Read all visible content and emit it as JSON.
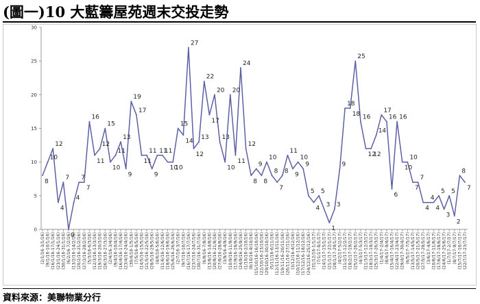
{
  "title": "(圖一)10 大藍籌屋苑週末交投走勢",
  "source": "資料來源：美聯物業分行",
  "chart_data": {
    "type": "line",
    "title": "(圖一)10 大藍籌屋苑週末交投走勢",
    "xlabel": "",
    "ylabel": "",
    "ylim": [
      0,
      30
    ],
    "yticks": [
      0,
      5,
      10,
      15,
      20,
      25,
      30
    ],
    "grid": false,
    "line_color": "#5b5fa6",
    "categories": [
      "(2/1/16-3/1/16)",
      "(9/1/16-10/1/16)",
      "(16/1/16-17/1/16)",
      "(23/1/16-24/1/16)",
      "(30/1/16-31/1/16)",
      "(6/2/16-7/2/16)",
      "(13/2/16-14/2/16)",
      "(20/2/16-21/2/16)",
      "(27/2/16-28/2/16)",
      "(5/3/16-6/3/16)",
      "(12/3/16-13/3/16)",
      "(19/3/16-20/3/16)",
      "(26/3/16-27/3/16)",
      "(2/4/16-3/4/16)",
      "(9/4/16-10/4/16)",
      "(16/4/16-17/4/16)",
      "(23/4/16-24/4/16)",
      "(30/4/16-1/5/16)",
      "(7/5/16-8/5/16)",
      "(14/5/16-15/5/16)",
      "(21/5/16-22/5/16)",
      "(28/5/16-29/5/16)",
      "(4/6/16-5/6/16)",
      "(11/6/16-12/6/16)",
      "(18/6/16-19/6/16)",
      "(25/6/16-26/6/16)",
      "(2/7/16-3/7/16)",
      "(9/7/16-10/7/16)",
      "(16/7/16-17/7/16)",
      "(23/7/16-24/7/16)",
      "(30/7/16-31/7/16)",
      "(6/8/16-7/8/16)",
      "(13/8/16-14/8/16)",
      "(20/8/16-21/8/16)",
      "(27/8/16-28/8/16)",
      "(3/9/16-4/9/16)",
      "(10/9/16-11/9/16)",
      "(17/9/16-18/9/16)",
      "(24/9/16-25/9/16)",
      "(1/10/16-2/10/16)",
      "(8/10/16-9/10/16)",
      "(15/10/16-16/10/16)",
      "(22/10/16-23/10/16)",
      "(29/10/16-30/10/16)",
      "(5/11/16-6/11/16)",
      "(12/11/16-13/11/16)",
      "(19/11/16-20/11/16)",
      "(26/11/16-27/11/16)",
      "(3/12/16-4/12/16)",
      "(10/12/16-11/12/16)",
      "(17/12/16-18/12/16)",
      "(24/12/16-25/12/16)",
      "(31/12/16-1/1/17)",
      "(7/1/17-8/1/17)",
      "(14/1/17-15/1/17)",
      "(21/1/17-22/1/17)",
      "(28/1/17-29/1/17)",
      "(4/2/17-5/2/17)",
      "(11/2/17-12/2/17)",
      "(18/2/17-19/2/17)",
      "(25/2/17-26/2/17)",
      "(4/3/17-5/3/17)",
      "(11/3/17-12/3/17)",
      "(18/3/17-19/3/17)",
      "(25/3/17-26/3/17)",
      "(1/4/17-2/4/17)",
      "(8/4/17-9/4/17)",
      "(15/4/17-16/4/17)",
      "(22/4/17-23/4/17)",
      "(29/4/17-30/4/17)",
      "(6/5/17-7/5/17)",
      "(13/5/17-14/5/17)",
      "(20/5/17-21/5/17)",
      "(27/5/17-28/5/17)",
      "(3/6/17-4/6/17)",
      "(10/6/17-11/6/17)",
      "(17/6/17-18/6/17)",
      "(24/6/17-25/6/17)",
      "(1/7/17-2/7/17)",
      "(8/7/17-9/7/17)",
      "(15/7/17-16/7/17)",
      "(22/7/17-23/7/17)"
    ],
    "values": [
      8,
      10,
      12,
      4,
      7,
      0,
      4,
      7,
      7,
      16,
      11,
      12,
      15,
      10,
      11,
      13,
      9,
      19,
      17,
      11,
      11,
      9,
      11,
      11,
      10,
      10,
      15,
      14,
      27,
      12,
      13,
      22,
      17,
      20,
      13,
      10,
      20,
      11,
      24,
      12,
      8,
      9,
      8,
      10,
      8,
      7,
      8,
      11,
      9,
      10,
      9,
      5,
      4,
      5,
      3,
      1,
      3,
      9,
      18,
      18,
      25,
      16,
      12,
      12,
      14,
      17,
      16,
      6,
      16,
      10,
      10,
      7,
      7,
      4,
      4,
      4,
      5,
      3,
      5,
      2,
      8,
      7
    ],
    "visible_tick_labels": [
      "(2/1/16-3/1/16)",
      "(9/1/16-10/1/16)",
      "(16/1/16-17/1/16)",
      "(23/1/16-24/1/16)",
      "(30/1/16-31/1/16)",
      "(6/2/16-7/2/16)",
      "(13/2/16-14/2/16)",
      "(20/2/16-21/2/16)",
      "(27/2/16-28/2/16)",
      "(5/3/16-6/3/16)",
      "(12/3/16-13/3/16)",
      "(19/3/16-20/3/16)",
      "(26/3/16-27/3/16)",
      "(2/4/16-3/4/16)",
      "(9/4/16-10/4/16)",
      "(16/4/16-17/4/16)",
      "(23/4/16-24/4/16)",
      "(30/4/16-1/5/16)",
      "(7/5/16-8/5/16)",
      "(14/5/16-15/5/16)",
      "(21/5/16-22/5/16)",
      "(28/5/16-29/5/16)",
      "(4/6/16-5/6/16)",
      "(11/6/16-12/6/16)",
      "(18/6/16-19/6/16)",
      "(25/6/16-26/6/16)",
      "(2/7/16-3/7/16)",
      "(9/7/16-10/7/16)",
      "(16/7/16-17/7/16)",
      "(23/7/16-24/7/16)",
      "(30/7/16-31/7/16)",
      "(6/8/16-7/8/16)",
      "(13/8/16-14/8/16)",
      "(20/8/16-21/8/16)",
      "(27/8/16-28/8/16)",
      "(3/9/16-4/9/16)",
      "(10/9/16-11/9/16)",
      "(17/9/16-18/9/16)",
      "(24/9/16-25/9/16)",
      "(1/10/16-2/10/16)",
      "(8/10/16-9/10/16)",
      "(15/10/16-16/10/16)",
      "(22/10/16-23/10/16)",
      "(29/10/16-30/10/16)",
      "(5/11/16-6/11/16)",
      "(12/11/16-13/11/16)",
      "(19/11/16-20/11/16)",
      "(26/11/16-27/11/16)",
      "(3/12/16-4/12/16)",
      "(10/12/16-11/12/16)",
      "(17/12/16-18/12/16)",
      "(24/12/16-25/12/16)",
      "(31/12/16-1/1/17)",
      "(7/1/17-8/1/17)",
      "(14/1/17-15/1/17)",
      "(21/1/17-22/1/17)",
      "(28/1/17-29/1/17)",
      "(4/2/17-5/2/17)",
      "(11/2/17-12/2/17)",
      "(18/2/17-19/2/17)",
      "(25/2/17-26/2/17)",
      "(4/3/17-5/3/17)",
      "(11/3/17-12/3/17)",
      "(18/3/17-19/3/17)",
      "(25/3/17-26/3/17)",
      "(1/4/17-2/4/17)",
      "(8/4/17-9/4/17)",
      "(15/4/17-16/4/17)",
      "(22/4/17-23/4/17)",
      "(29/4/17-30/4/17)",
      "(6/5/17-7/5/17)",
      "(13/5/17-14/5/17)",
      "(20/5/17-21/5/17)",
      "(27/5/17-28/5/17)",
      "(3/6/17-4/6/17)",
      "(10/6/17-11/6/17)",
      "(17/6/17-18/6/17)",
      "(24/6/17-25/6/17)",
      "(1/7/17-2/7/17)",
      "(8/7/17-9/7/17)",
      "(15/7/17-16/7/17)",
      "(22/7/17-23/7/17)"
    ]
  }
}
